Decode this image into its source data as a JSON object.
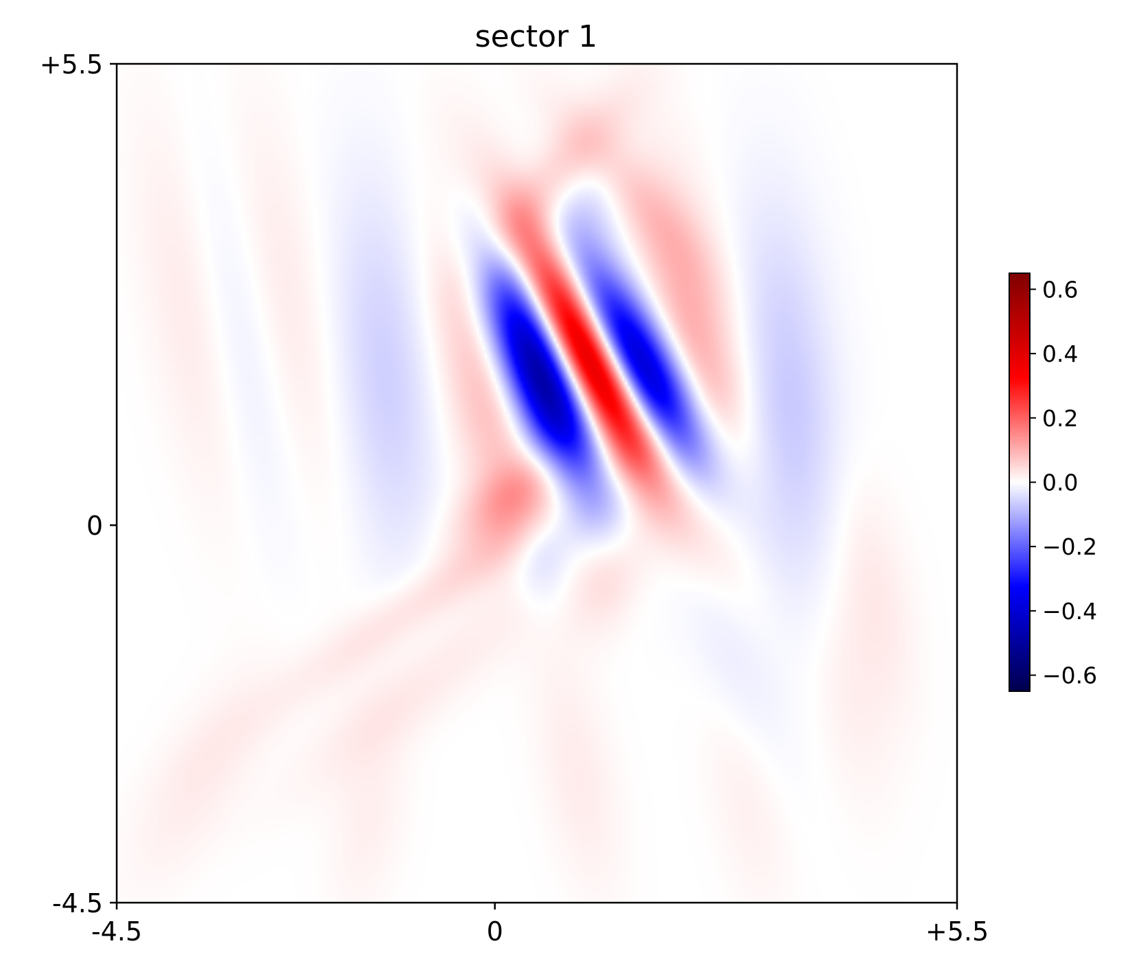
{
  "chart_data": {
    "type": "heatmap",
    "title": "sector 1",
    "xlabel": "",
    "ylabel": "",
    "xlim": [
      -4.5,
      5.5
    ],
    "ylim": [
      -4.5,
      5.5
    ],
    "x_ticks": [
      {
        "value": -4.5,
        "label": "-4.5"
      },
      {
        "value": 0,
        "label": "0"
      },
      {
        "value": 5.5,
        "label": "+5.5"
      }
    ],
    "y_ticks": [
      {
        "value": -4.5,
        "label": "-4.5"
      },
      {
        "value": 0,
        "label": "0"
      },
      {
        "value": 5.5,
        "label": "+5.5"
      }
    ],
    "colormap": "seismic",
    "color_range": [
      -0.65,
      0.65
    ],
    "colorbar": {
      "placement": "right",
      "ticks": [
        {
          "value": 0.6,
          "label": "0.6"
        },
        {
          "value": 0.4,
          "label": "0.4"
        },
        {
          "value": 0.2,
          "label": "0.2"
        },
        {
          "value": 0.0,
          "label": "0.0"
        },
        {
          "value": -0.2,
          "label": "−0.2"
        },
        {
          "value": -0.4,
          "label": "−0.4"
        },
        {
          "value": -0.6,
          "label": "−0.6"
        }
      ]
    },
    "field": {
      "description_units": "data units",
      "components": [
        {
          "cx": 1.1,
          "cy": 2.1,
          "amp": 0.65,
          "sx": 0.28,
          "sy": 1.1,
          "angle_deg": -28,
          "kx": 0
        },
        {
          "cx": 0.55,
          "cy": 1.85,
          "amp": -0.55,
          "sx": 0.3,
          "sy": 1.05,
          "angle_deg": -22,
          "kx": 0
        },
        {
          "cx": 1.65,
          "cy": 1.95,
          "amp": -0.55,
          "sx": 0.3,
          "sy": 1.05,
          "angle_deg": -32,
          "kx": 0
        },
        {
          "cx": -0.1,
          "cy": 1.9,
          "amp": 0.1,
          "sx": 0.35,
          "sy": 1.4,
          "angle_deg": -10,
          "kx": 0
        },
        {
          "cx": 2.4,
          "cy": 1.85,
          "amp": 0.12,
          "sx": 0.35,
          "sy": 1.4,
          "angle_deg": -10,
          "kx": 0
        },
        {
          "cx": -1.3,
          "cy": 1.8,
          "amp": -0.06,
          "sx": 0.4,
          "sy": 1.6,
          "angle_deg": -5,
          "kx": 0
        },
        {
          "cx": 3.5,
          "cy": 1.5,
          "amp": -0.07,
          "sx": 0.4,
          "sy": 1.6,
          "angle_deg": -5,
          "kx": 0
        },
        {
          "cx": 0.3,
          "cy": 0.4,
          "amp": 0.1,
          "sx": 0.25,
          "sy": 0.6,
          "angle_deg": 55,
          "kx": 0
        },
        {
          "cx": -0.3,
          "cy": -0.5,
          "amp": 0.05,
          "sx": 0.22,
          "sy": 1.8,
          "angle_deg": 55,
          "kx": 0
        },
        {
          "cx": 0.7,
          "cy": 4.1,
          "amp": 0.07,
          "sx": 0.25,
          "sy": 0.9,
          "angle_deg": 40,
          "kx": 0
        },
        {
          "cx": 1.6,
          "cy": 4.0,
          "amp": 0.06,
          "sx": 0.25,
          "sy": 0.9,
          "angle_deg": -40,
          "kx": 0
        },
        {
          "cx": 1.15,
          "cy": 3.9,
          "amp": -0.05,
          "sx": 0.3,
          "sy": 0.5,
          "angle_deg": 0,
          "kx": 0
        },
        {
          "cx": 1.4,
          "cy": -0.5,
          "amp": 0.06,
          "sx": 0.3,
          "sy": 0.5,
          "angle_deg": 20,
          "kx": 0
        },
        {
          "cx": 0.55,
          "cy": -0.35,
          "amp": -0.06,
          "sx": 0.25,
          "sy": 0.45,
          "angle_deg": 0,
          "kx": 0
        },
        {
          "cx": -2.5,
          "cy": 2.6,
          "amp": 0.03,
          "sx": 0.35,
          "sy": 1.7,
          "angle_deg": -10,
          "kx": 0
        },
        {
          "cx": -3.6,
          "cy": 2.5,
          "amp": 0.03,
          "sx": 0.35,
          "sy": 1.7,
          "angle_deg": -10,
          "kx": 0
        },
        {
          "cx": -3.0,
          "cy": 2.2,
          "amp": -0.03,
          "sx": 0.35,
          "sy": 1.7,
          "angle_deg": -10,
          "kx": 0
        },
        {
          "cx": -1.0,
          "cy": -2.0,
          "amp": 0.03,
          "sx": 0.3,
          "sy": 1.2,
          "angle_deg": 50,
          "kx": 0
        },
        {
          "cx": 2.8,
          "cy": -1.5,
          "amp": -0.03,
          "sx": 0.3,
          "sy": 1.0,
          "angle_deg": -20,
          "kx": 0
        },
        {
          "cx": 4.5,
          "cy": -0.8,
          "amp": 0.03,
          "sx": 0.3,
          "sy": 1.0,
          "angle_deg": -10,
          "kx": 0
        },
        {
          "cx": -3.5,
          "cy": -3.0,
          "amp": 0.025,
          "sx": 0.35,
          "sy": 1.0,
          "angle_deg": 30,
          "kx": 0
        },
        {
          "cx": -1.5,
          "cy": -3.5,
          "amp": 0.02,
          "sx": 0.3,
          "sy": 0.8,
          "angle_deg": 10,
          "kx": 0
        },
        {
          "cx": 1.0,
          "cy": -3.0,
          "amp": 0.025,
          "sx": 0.3,
          "sy": 1.0,
          "angle_deg": -10,
          "kx": 0
        },
        {
          "cx": 3.0,
          "cy": -3.2,
          "amp": 0.02,
          "sx": 0.3,
          "sy": 1.0,
          "angle_deg": -10,
          "kx": 0
        },
        {
          "cx": 4.2,
          "cy": -2.0,
          "amp": 0.02,
          "sx": 0.3,
          "sy": 1.0,
          "angle_deg": -10,
          "kx": 0
        }
      ]
    }
  }
}
